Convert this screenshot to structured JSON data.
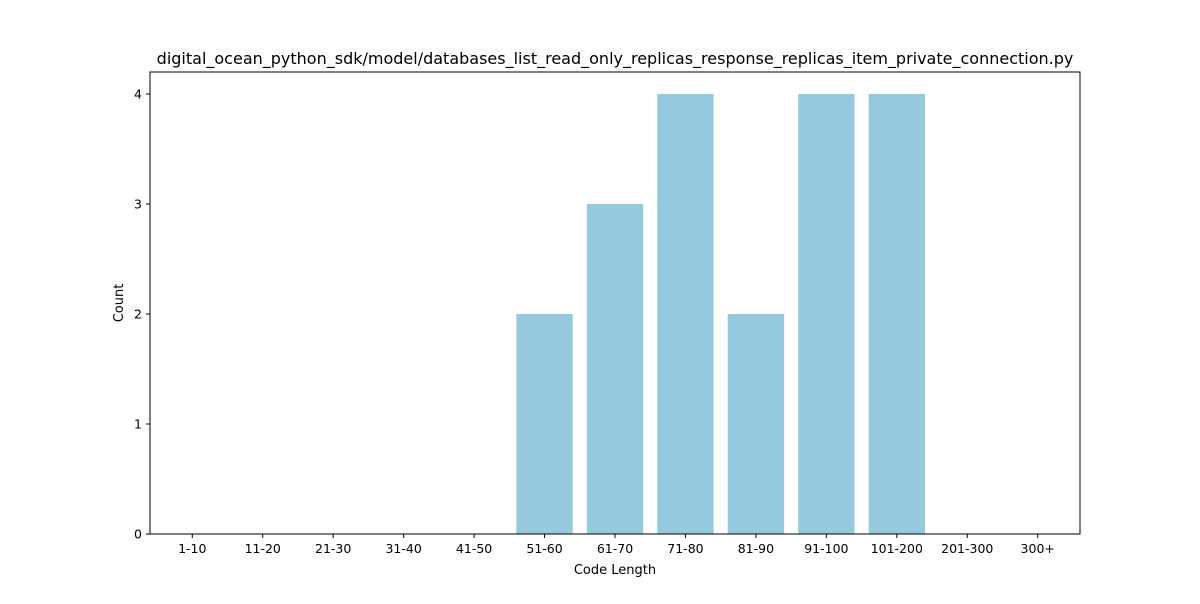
{
  "chart_data": {
    "type": "bar",
    "title": "digital_ocean_python_sdk/model/databases_list_read_only_replicas_response_replicas_item_private_connection.py",
    "xlabel": "Code Length",
    "ylabel": "Count",
    "categories": [
      "1-10",
      "11-20",
      "21-30",
      "31-40",
      "41-50",
      "51-60",
      "61-70",
      "71-80",
      "81-90",
      "91-100",
      "101-200",
      "201-300",
      "300+"
    ],
    "values": [
      0,
      0,
      0,
      0,
      0,
      2,
      3,
      4,
      2,
      4,
      4,
      0,
      0
    ],
    "ylim": [
      0,
      4.2
    ],
    "yticks": [
      0,
      1,
      2,
      3,
      4
    ],
    "bar_color": "#96c9de",
    "grid": false,
    "legend": "none"
  }
}
